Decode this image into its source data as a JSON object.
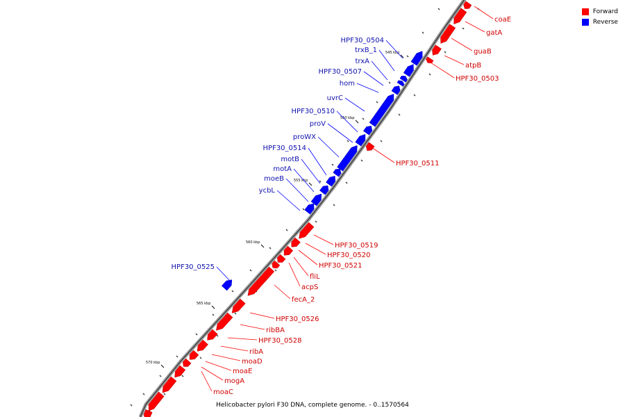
{
  "caption": "Helicobacter pylori F30 DNA, complete genome. - 0..1570564",
  "legend": [
    {
      "label": "Forward",
      "color": "#ff0000"
    },
    {
      "label": "Reverse",
      "color": "#0000ff"
    }
  ],
  "colors": {
    "forward": "#ff0000",
    "reverse": "#0000ff",
    "backbone": "#999999"
  },
  "ticks": [
    "545 kbp",
    "550 kbp",
    "555 kbp",
    "560 kbp",
    "565 kbp",
    "570 kbp"
  ],
  "forward_labels": [
    "coaE",
    "gatA",
    "guaB",
    "atpB",
    "HPF30_0503",
    "HPF30_0511",
    "HPF30_0519",
    "HPF30_0520",
    "HPF30_0521",
    "fliL",
    "acpS",
    "fecA_2",
    "HPF30_0526",
    "ribBA",
    "HPF30_0528",
    "ribA",
    "moaD",
    "moaE",
    "mogA",
    "moaC"
  ],
  "reverse_labels": [
    "HPF30_0504",
    "trxB_1",
    "trxA",
    "HPF30_0507",
    "hom",
    "uvrC",
    "HPF30_0510",
    "proV",
    "proWX",
    "HPF30_0514",
    "motB",
    "motA",
    "moeB",
    "ycbL",
    "HPF30_0525"
  ]
}
